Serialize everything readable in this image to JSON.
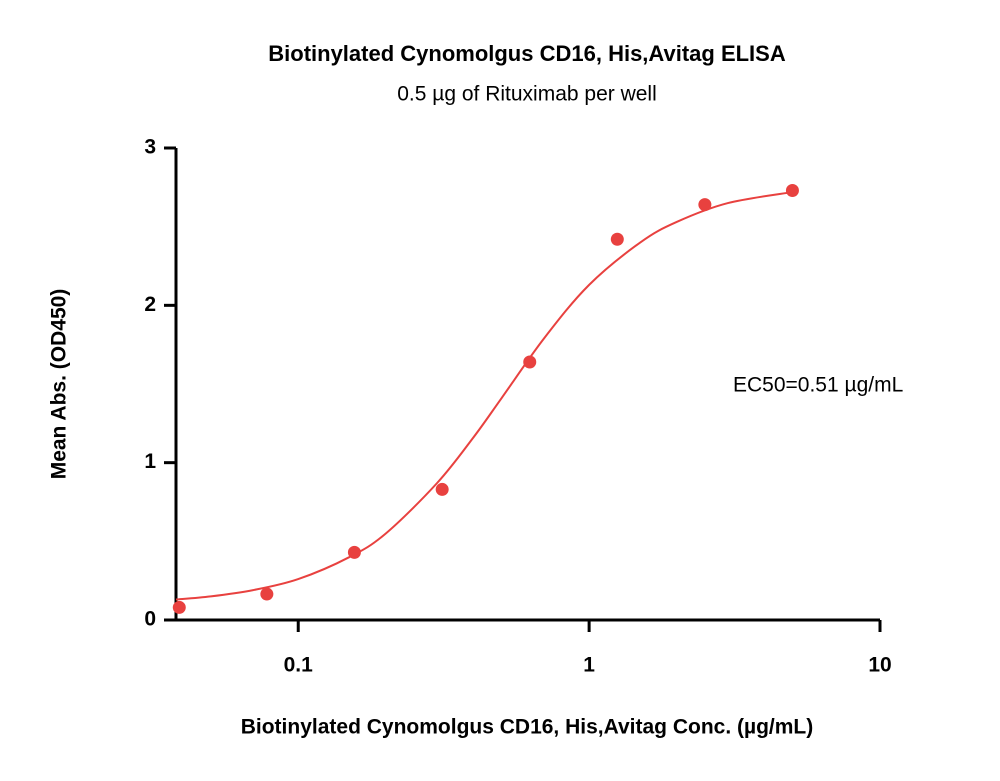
{
  "chart_data": {
    "type": "scatter",
    "title": "Biotinylated Cynomolgus CD16, His,Avitag ELISA",
    "subtitle": "0.5 µg of Rituximab per well",
    "x_label": "Biotinylated Cynomolgus CD16, His,Avitag Conc. (µg/mL)",
    "y_label": "Mean Abs. (OD450)",
    "annotation": "EC50=0.51 µg/mL",
    "xscale": "log",
    "xlim": [
      0.038,
      10
    ],
    "xticks": [
      0.1,
      1,
      10
    ],
    "ylim": [
      0,
      3
    ],
    "yticks": [
      0,
      1,
      2,
      3
    ],
    "points": {
      "color": "#e8413f",
      "x": [
        0.039,
        0.078,
        0.156,
        0.3125,
        0.625,
        1.25,
        2.5,
        5
      ],
      "y": [
        0.08,
        0.165,
        0.43,
        0.83,
        1.64,
        2.42,
        2.64,
        2.73
      ]
    },
    "fit": {
      "color": "#e8413f",
      "x": [
        0.038,
        0.05,
        0.07,
        0.1,
        0.15,
        0.2,
        0.3,
        0.4,
        0.5,
        0.7,
        1,
        1.5,
        2,
        3,
        5
      ],
      "y": [
        0.13,
        0.15,
        0.19,
        0.26,
        0.4,
        0.55,
        0.87,
        1.16,
        1.41,
        1.79,
        2.13,
        2.4,
        2.53,
        2.65,
        2.72
      ]
    }
  }
}
